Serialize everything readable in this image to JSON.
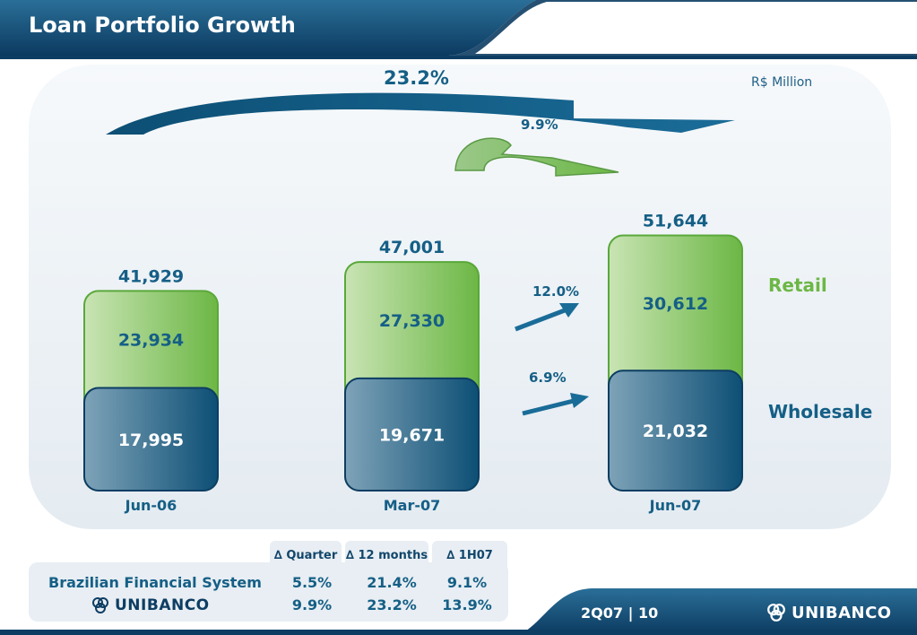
{
  "header": {
    "title": "Loan Portfolio Growth"
  },
  "chart_data": {
    "type": "bar",
    "stacked": true,
    "unit_label": "R$ Million",
    "categories": [
      "Jun-06",
      "Mar-07",
      "Jun-07"
    ],
    "totals": [
      "41,929",
      "47,001",
      "51,644"
    ],
    "series": [
      {
        "name": "Retail",
        "values": [
          23934,
          27330,
          30612
        ],
        "labels": [
          "23,934",
          "27,330",
          "30,612"
        ],
        "color": "#6cb745"
      },
      {
        "name": "Wholesale",
        "values": [
          17995,
          19671,
          21032
        ],
        "labels": [
          "17,995",
          "19,671",
          "21,032"
        ],
        "color": "#155f86"
      }
    ],
    "growth_annotations": {
      "year_over_year": "23.2%",
      "quarter": "9.9%",
      "retail_quarter": "12.0%",
      "wholesale_quarter": "6.9%"
    }
  },
  "table": {
    "headers": [
      "Quarter",
      "12 months",
      "1H07"
    ],
    "delta_symbol": "∆",
    "rows": [
      {
        "label": "Brazilian Financial System",
        "values": [
          "5.5%",
          "21.4%",
          "9.1%"
        ]
      },
      {
        "label": "UNIBANCO",
        "values": [
          "9.9%",
          "23.2%",
          "13.9%"
        ]
      }
    ]
  },
  "footer": {
    "page": "2Q07 | 10",
    "brand": "UNIBANCO"
  },
  "colors": {
    "navy": "#0d3d63",
    "blue": "#155f86",
    "green": "#6cb745"
  }
}
